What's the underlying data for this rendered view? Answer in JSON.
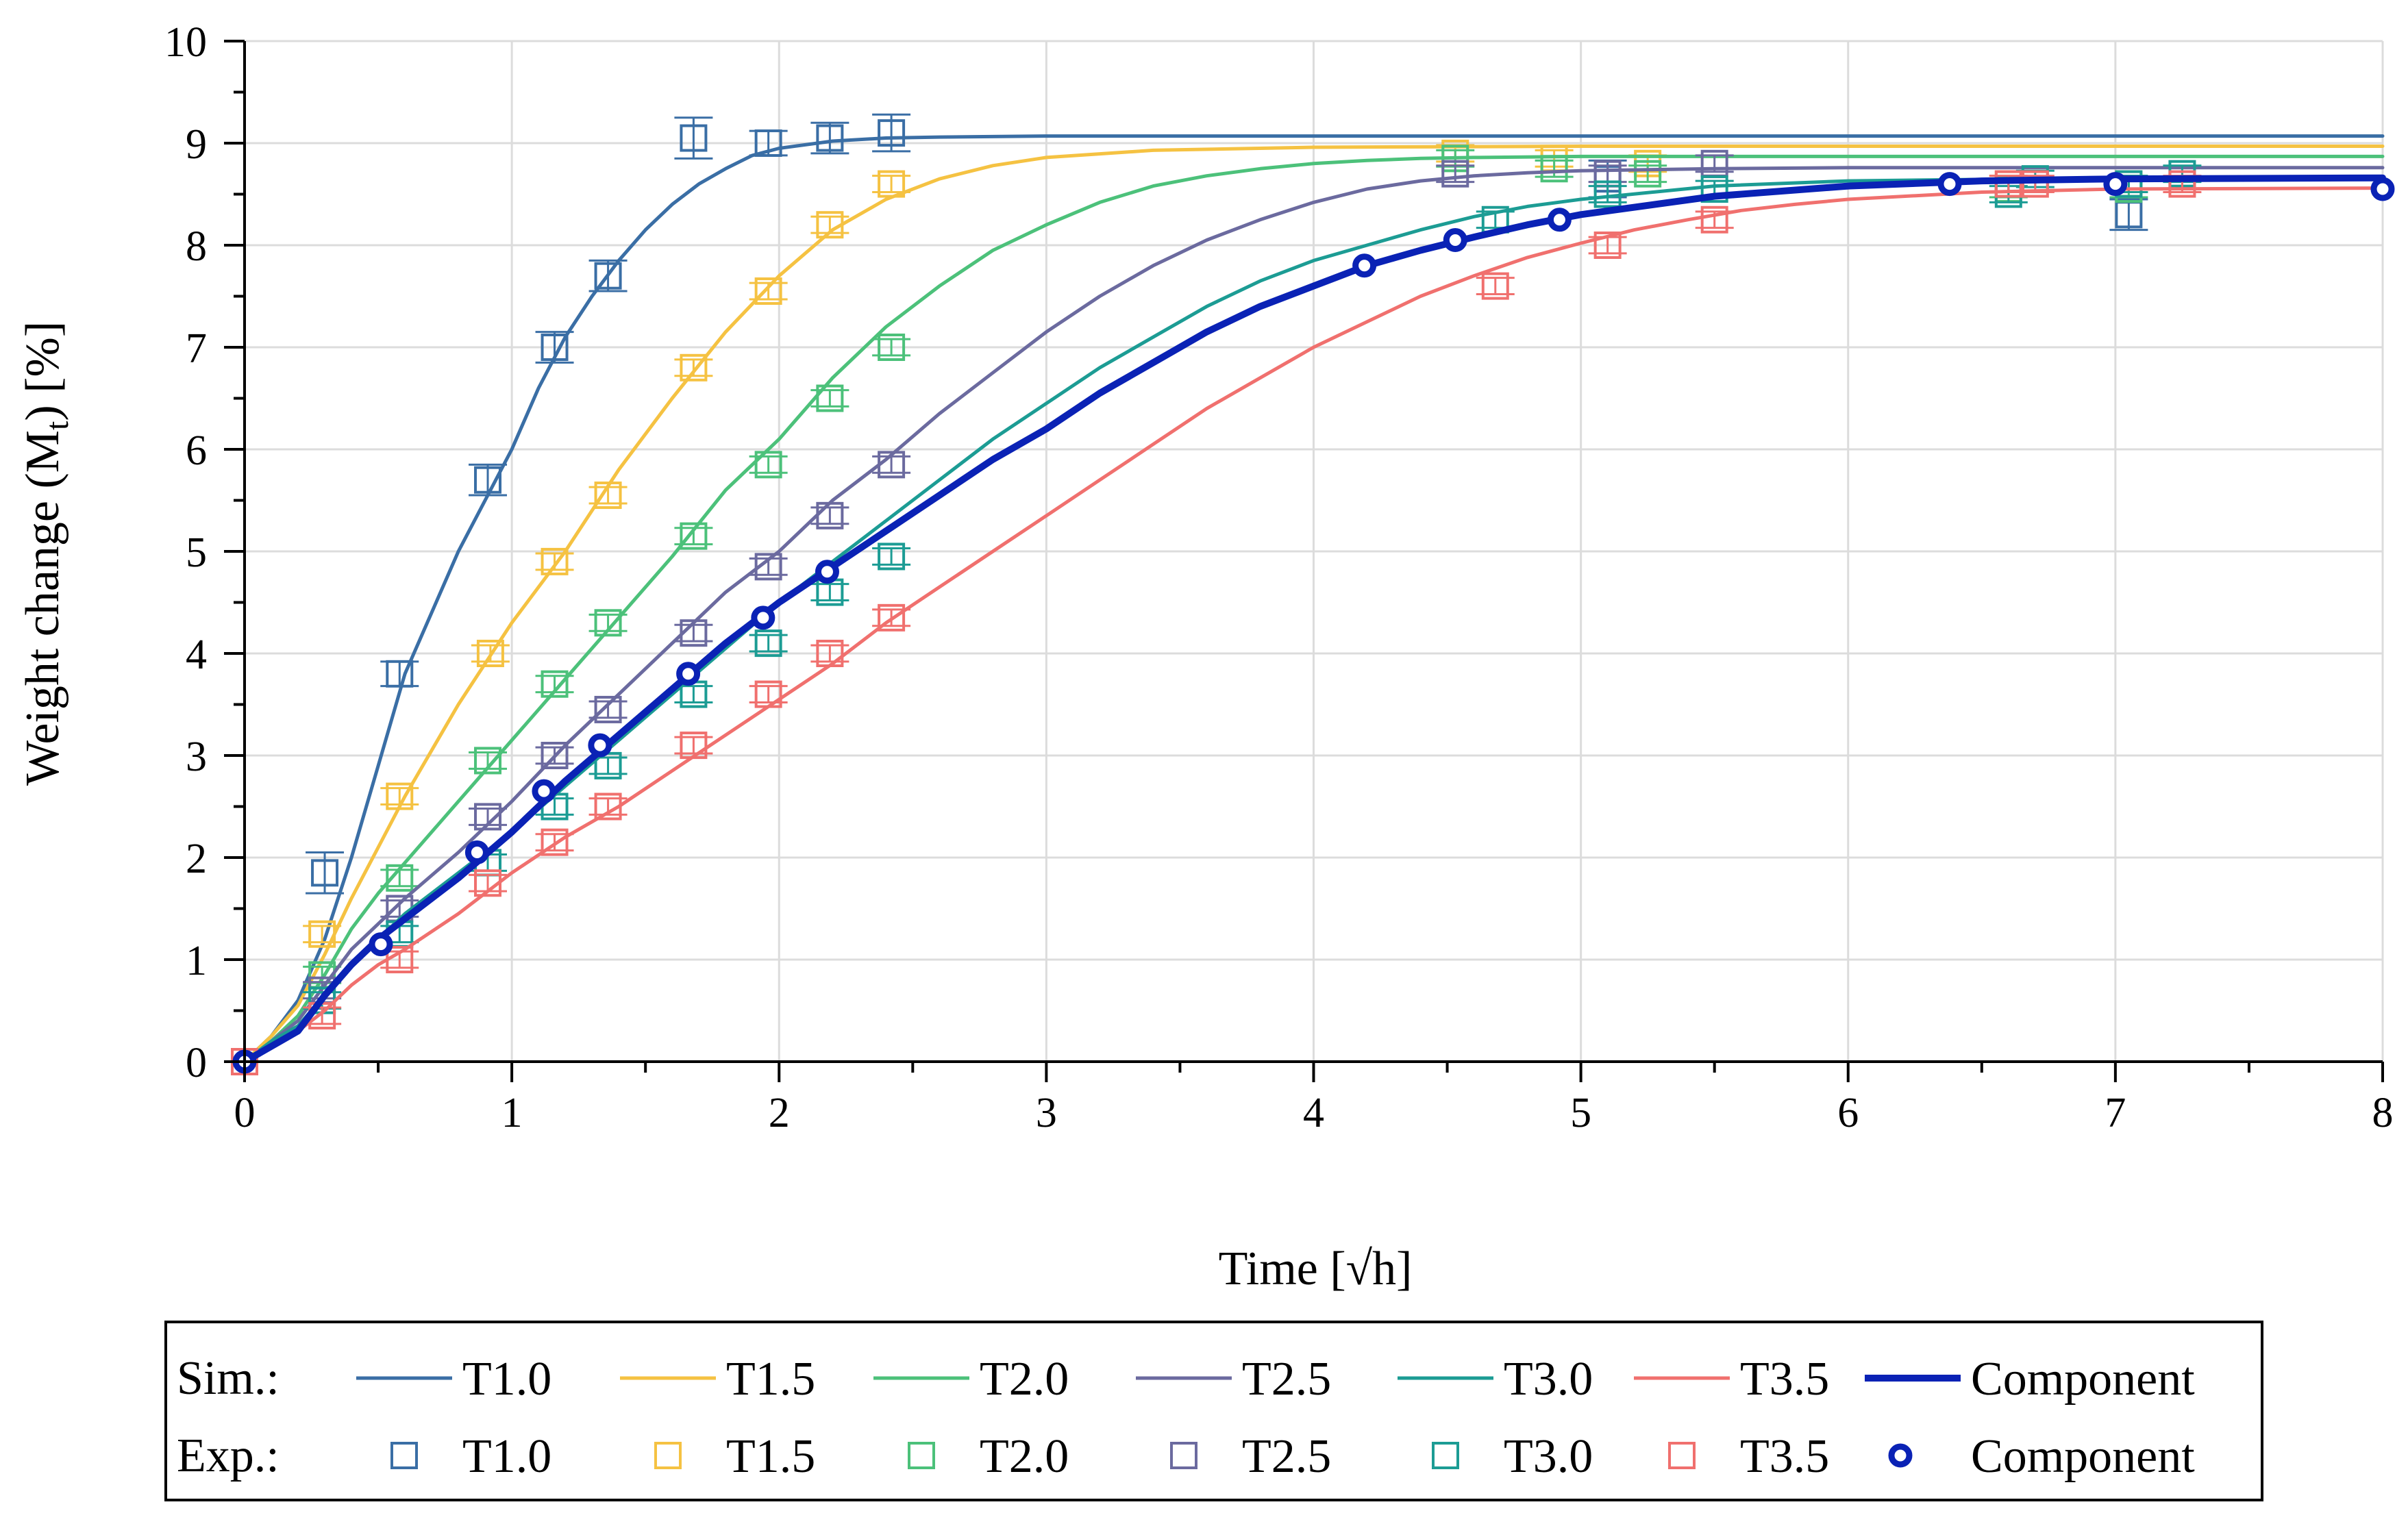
{
  "chart_data": {
    "type": "line",
    "xlabel": "Time [√h]",
    "ylabel": "Weight change (M",
    "ylabel_sub": "t",
    "ylabel_suffix": ") [%]",
    "xlim": [
      0,
      8
    ],
    "ylim": [
      0,
      10
    ],
    "xticks": [
      0,
      1,
      2,
      3,
      4,
      5,
      6,
      7,
      8
    ],
    "yticks": [
      0,
      1,
      2,
      3,
      4,
      5,
      6,
      7,
      8,
      9,
      10
    ],
    "grid": true,
    "legend": {
      "placement": "bottom",
      "row_sim": "Sim.:",
      "row_exp": "Exp.:"
    },
    "series": [
      {
        "name": "T1.0",
        "color": "#3a6ea5",
        "sim_x": [
          0,
          0.1,
          0.2,
          0.3,
          0.4,
          0.5,
          0.6,
          0.7,
          0.8,
          0.9,
          1.0,
          1.1,
          1.2,
          1.3,
          1.4,
          1.5,
          1.6,
          1.7,
          1.8,
          1.9,
          2.0,
          2.2,
          2.4,
          2.6,
          3.0,
          4.0,
          8.0
        ],
        "sim_y": [
          0,
          0.25,
          0.6,
          1.2,
          2.0,
          2.9,
          3.8,
          4.4,
          5.0,
          5.5,
          6.0,
          6.6,
          7.1,
          7.5,
          7.85,
          8.15,
          8.4,
          8.6,
          8.75,
          8.88,
          8.95,
          9.02,
          9.05,
          9.06,
          9.07,
          9.07,
          9.07
        ],
        "exp_x": [
          0,
          0.3,
          0.58,
          0.91,
          1.16,
          1.36,
          1.68,
          1.96,
          2.19,
          2.42,
          5.1,
          7.05
        ],
        "exp_y": [
          0,
          1.85,
          3.8,
          5.7,
          7.0,
          7.7,
          9.05,
          9.0,
          9.05,
          9.1,
          8.65,
          8.3
        ],
        "exp_err": [
          0,
          0.2,
          0.12,
          0.15,
          0.15,
          0.15,
          0.2,
          0.12,
          0.15,
          0.18,
          0.18,
          0.15
        ]
      },
      {
        "name": "T1.5",
        "color": "#f5c242",
        "sim_x": [
          0,
          0.1,
          0.2,
          0.3,
          0.4,
          0.5,
          0.6,
          0.8,
          1.0,
          1.2,
          1.4,
          1.6,
          1.8,
          2.0,
          2.2,
          2.4,
          2.6,
          2.8,
          3.0,
          3.4,
          4.0,
          5.0,
          8.0
        ],
        "sim_y": [
          0,
          0.25,
          0.55,
          1.05,
          1.6,
          2.1,
          2.6,
          3.5,
          4.3,
          5.0,
          5.8,
          6.5,
          7.15,
          7.7,
          8.15,
          8.45,
          8.65,
          8.78,
          8.86,
          8.93,
          8.96,
          8.97,
          8.97
        ],
        "exp_x": [
          0,
          0.29,
          0.58,
          0.92,
          1.16,
          1.36,
          1.68,
          1.96,
          2.19,
          2.42,
          4.53,
          4.9,
          5.25,
          6.6,
          7.05
        ],
        "exp_y": [
          0,
          1.25,
          2.6,
          4.0,
          4.9,
          5.55,
          6.8,
          7.55,
          8.2,
          8.6,
          8.9,
          8.85,
          8.8,
          8.6,
          8.6
        ],
        "exp_err": [
          0,
          0.08,
          0.08,
          0.08,
          0.08,
          0.08,
          0.08,
          0.08,
          0.08,
          0.08,
          0.08,
          0.08,
          0.08,
          0.08,
          0.08
        ]
      },
      {
        "name": "T2.0",
        "color": "#4cc17a",
        "sim_x": [
          0,
          0.1,
          0.2,
          0.3,
          0.4,
          0.5,
          0.6,
          0.8,
          1.0,
          1.2,
          1.4,
          1.6,
          1.8,
          2.0,
          2.2,
          2.4,
          2.6,
          2.8,
          3.0,
          3.2,
          3.4,
          3.6,
          3.8,
          4.0,
          4.2,
          4.4,
          4.6,
          5.0,
          6.0,
          8.0
        ],
        "sim_y": [
          0,
          0.2,
          0.45,
          0.85,
          1.3,
          1.65,
          1.95,
          2.55,
          3.15,
          3.75,
          4.35,
          4.95,
          5.6,
          6.1,
          6.7,
          7.2,
          7.6,
          7.95,
          8.2,
          8.42,
          8.58,
          8.68,
          8.75,
          8.8,
          8.83,
          8.85,
          8.86,
          8.87,
          8.87,
          8.87
        ],
        "exp_x": [
          0,
          0.29,
          0.58,
          0.91,
          1.16,
          1.36,
          1.68,
          1.96,
          2.19,
          2.42,
          4.53,
          4.9,
          5.25,
          6.6,
          7.05
        ],
        "exp_y": [
          0,
          0.85,
          1.8,
          2.95,
          3.7,
          4.3,
          5.15,
          5.85,
          6.5,
          7.0,
          8.85,
          8.75,
          8.7,
          8.55,
          8.55
        ],
        "exp_err": [
          0,
          0.08,
          0.08,
          0.08,
          0.08,
          0.08,
          0.08,
          0.08,
          0.08,
          0.08,
          0.08,
          0.08,
          0.08,
          0.08,
          0.08
        ]
      },
      {
        "name": "T2.5",
        "color": "#6b6a9f",
        "sim_x": [
          0,
          0.1,
          0.2,
          0.3,
          0.4,
          0.5,
          0.6,
          0.8,
          1.0,
          1.2,
          1.4,
          1.6,
          1.8,
          2.0,
          2.2,
          2.4,
          2.6,
          2.8,
          3.0,
          3.2,
          3.4,
          3.6,
          3.8,
          4.0,
          4.2,
          4.4,
          4.6,
          4.8,
          5.0,
          5.5,
          6.0,
          8.0
        ],
        "sim_y": [
          0,
          0.2,
          0.4,
          0.75,
          1.1,
          1.35,
          1.6,
          2.05,
          2.55,
          3.1,
          3.6,
          4.1,
          4.6,
          5.0,
          5.5,
          5.9,
          6.35,
          6.75,
          7.15,
          7.5,
          7.8,
          8.05,
          8.25,
          8.42,
          8.55,
          8.63,
          8.68,
          8.71,
          8.73,
          8.75,
          8.76,
          8.76
        ],
        "exp_x": [
          0,
          0.29,
          0.58,
          0.91,
          1.16,
          1.36,
          1.68,
          1.96,
          2.19,
          2.42,
          4.53,
          5.1,
          5.5
        ],
        "exp_y": [
          0,
          0.7,
          1.5,
          2.4,
          3.0,
          3.45,
          4.2,
          4.85,
          5.35,
          5.85,
          8.7,
          8.7,
          8.8
        ],
        "exp_err": [
          0,
          0.08,
          0.08,
          0.08,
          0.08,
          0.08,
          0.08,
          0.08,
          0.08,
          0.08,
          0.08,
          0.08,
          0.08
        ]
      },
      {
        "name": "T3.0",
        "color": "#1c9c94",
        "sim_x": [
          0,
          0.1,
          0.2,
          0.3,
          0.4,
          0.5,
          0.6,
          0.8,
          1.0,
          1.2,
          1.4,
          1.6,
          1.8,
          2.0,
          2.2,
          2.4,
          2.6,
          2.8,
          3.0,
          3.2,
          3.4,
          3.6,
          3.8,
          4.0,
          4.2,
          4.4,
          4.6,
          4.8,
          5.0,
          5.5,
          6.0,
          7.0,
          8.0
        ],
        "sim_y": [
          0,
          0.2,
          0.35,
          0.65,
          0.95,
          1.2,
          1.45,
          1.85,
          2.25,
          2.7,
          3.15,
          3.6,
          4.05,
          4.5,
          4.9,
          5.3,
          5.7,
          6.1,
          6.45,
          6.8,
          7.1,
          7.4,
          7.65,
          7.85,
          8.0,
          8.15,
          8.28,
          8.38,
          8.45,
          8.58,
          8.63,
          8.66,
          8.67
        ],
        "exp_x": [
          0,
          0.29,
          0.58,
          0.91,
          1.16,
          1.36,
          1.68,
          1.96,
          2.19,
          2.42,
          4.68,
          5.1,
          5.5,
          6.6,
          6.7,
          7.05,
          7.25
        ],
        "exp_y": [
          0,
          0.6,
          1.25,
          1.95,
          2.5,
          2.9,
          3.6,
          4.1,
          4.6,
          4.95,
          8.25,
          8.5,
          8.55,
          8.5,
          8.65,
          8.6,
          8.7
        ],
        "exp_err": [
          0,
          0.08,
          0.08,
          0.08,
          0.08,
          0.08,
          0.08,
          0.08,
          0.08,
          0.08,
          0.08,
          0.08,
          0.08,
          0.08,
          0.08,
          0.08,
          0.08
        ]
      },
      {
        "name": "T3.5",
        "color": "#f0706e",
        "sim_x": [
          0,
          0.1,
          0.2,
          0.3,
          0.4,
          0.5,
          0.6,
          0.8,
          1.0,
          1.2,
          1.4,
          1.6,
          1.8,
          2.0,
          2.2,
          2.4,
          2.6,
          2.8,
          3.0,
          3.2,
          3.4,
          3.6,
          3.8,
          4.0,
          4.2,
          4.4,
          4.6,
          4.8,
          5.0,
          5.2,
          5.4,
          5.6,
          5.8,
          6.0,
          6.5,
          7.0,
          8.0
        ],
        "sim_y": [
          0,
          0.15,
          0.3,
          0.5,
          0.75,
          0.95,
          1.1,
          1.45,
          1.85,
          2.2,
          2.5,
          2.85,
          3.2,
          3.55,
          3.9,
          4.3,
          4.65,
          5.0,
          5.35,
          5.7,
          6.05,
          6.4,
          6.7,
          7.0,
          7.25,
          7.5,
          7.7,
          7.88,
          8.02,
          8.15,
          8.25,
          8.34,
          8.4,
          8.45,
          8.52,
          8.55,
          8.56
        ],
        "exp_x": [
          0,
          0.29,
          0.58,
          0.91,
          1.16,
          1.36,
          1.68,
          1.96,
          2.19,
          2.42,
          4.68,
          5.1,
          5.5,
          6.6,
          6.7,
          7.25
        ],
        "exp_y": [
          0,
          0.45,
          1.0,
          1.75,
          2.15,
          2.5,
          3.1,
          3.6,
          4.0,
          4.35,
          7.6,
          8.0,
          8.25,
          8.6,
          8.6,
          8.6
        ],
        "exp_err": [
          0,
          0.08,
          0.08,
          0.08,
          0.08,
          0.08,
          0.08,
          0.08,
          0.08,
          0.08,
          0.08,
          0.08,
          0.08,
          0.08,
          0.08,
          0.08
        ]
      },
      {
        "name": "Component",
        "color": "#0a22b5",
        "sim_x": [
          0,
          0.1,
          0.2,
          0.3,
          0.4,
          0.5,
          0.6,
          0.8,
          1.0,
          1.2,
          1.4,
          1.6,
          1.8,
          2.0,
          2.2,
          2.4,
          2.6,
          2.8,
          3.0,
          3.2,
          3.4,
          3.6,
          3.8,
          4.0,
          4.2,
          4.4,
          4.6,
          4.8,
          5.0,
          5.5,
          6.0,
          6.5,
          7.0,
          8.0
        ],
        "sim_y": [
          0,
          0.15,
          0.3,
          0.65,
          0.95,
          1.2,
          1.4,
          1.8,
          2.25,
          2.75,
          3.2,
          3.65,
          4.1,
          4.5,
          4.85,
          5.2,
          5.55,
          5.9,
          6.2,
          6.55,
          6.85,
          7.15,
          7.4,
          7.6,
          7.8,
          7.95,
          8.08,
          8.2,
          8.3,
          8.48,
          8.58,
          8.63,
          8.65,
          8.66
        ],
        "exp_x": [
          0,
          0.51,
          0.87,
          1.12,
          1.33,
          1.66,
          1.94,
          2.18,
          4.19,
          4.53,
          4.92,
          6.38,
          7.0,
          8.0
        ],
        "exp_y": [
          0,
          1.15,
          2.05,
          2.65,
          3.1,
          3.8,
          4.35,
          4.8,
          7.8,
          8.05,
          8.25,
          8.6,
          8.6,
          8.55
        ]
      }
    ]
  }
}
